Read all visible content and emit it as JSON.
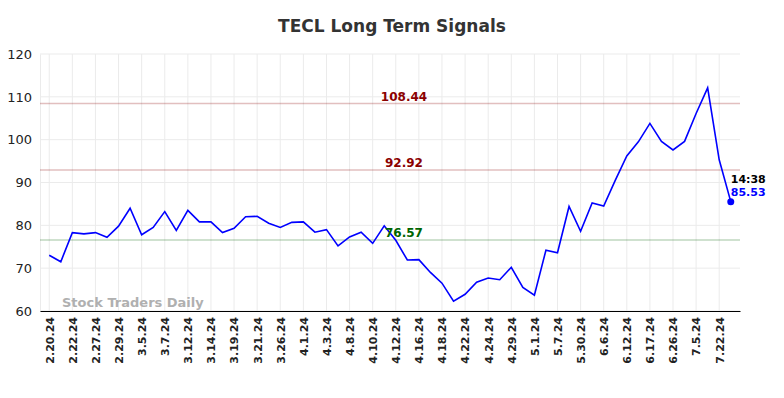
{
  "chart_data": {
    "type": "line",
    "title": "TECL Long Term Signals",
    "watermark": "Stock Traders Daily",
    "categories": [
      "2.20.24",
      null,
      "2.22.24",
      null,
      "2.27.24",
      null,
      "2.29.24",
      null,
      "3.5.24",
      null,
      "3.7.24",
      null,
      "3.12.24",
      null,
      "3.14.24",
      null,
      "3.19.24",
      null,
      "3.21.24",
      null,
      "3.26.24",
      null,
      "4.1.24",
      null,
      "4.3.24",
      null,
      "4.8.24",
      null,
      "4.10.24",
      null,
      "4.12.24",
      null,
      "4.16.24",
      null,
      "4.18.24",
      null,
      "4.22.24",
      null,
      "4.24.24",
      null,
      "4.29.24",
      null,
      "5.1.24",
      null,
      "5.7.24",
      null,
      "5.30.24",
      null,
      "6.6.24",
      null,
      "6.12.24",
      null,
      "6.17.24",
      null,
      "6.26.24",
      null,
      "7.5.24",
      null,
      "7.22.24",
      null
    ],
    "values": [
      73,
      71.5,
      78.3,
      78,
      78.3,
      77.2,
      79.8,
      84,
      77.8,
      79.5,
      83.2,
      78.8,
      83.5,
      80.8,
      80.8,
      78.3,
      79.3,
      82,
      82.1,
      80.5,
      79.5,
      80.7,
      80.8,
      78.4,
      79,
      75.2,
      77.3,
      78.4,
      75.8,
      79.9,
      76.5,
      71.9,
      72,
      69,
      66.5,
      62.3,
      63.9,
      66.7,
      67.7,
      67.3,
      70.2,
      65.5,
      63.7,
      74.2,
      73.6,
      84.4,
      78.6,
      85.2,
      84.5,
      90.5,
      96.2,
      99.5,
      103.8,
      99.6,
      97.6,
      99.6,
      106.1,
      112.1,
      95.3,
      85.53
    ],
    "color": "#0000ff",
    "last_time": "14:38",
    "reference_lines": [
      {
        "value": 108.44,
        "color": "#8b0000"
      },
      {
        "value": 92.92,
        "color": "#8b0000"
      },
      {
        "value": 76.57,
        "color": "#006400"
      }
    ],
    "ylim": [
      60,
      120
    ],
    "yticks": [
      60,
      70,
      80,
      90,
      100,
      110,
      120
    ],
    "grid": true
  }
}
